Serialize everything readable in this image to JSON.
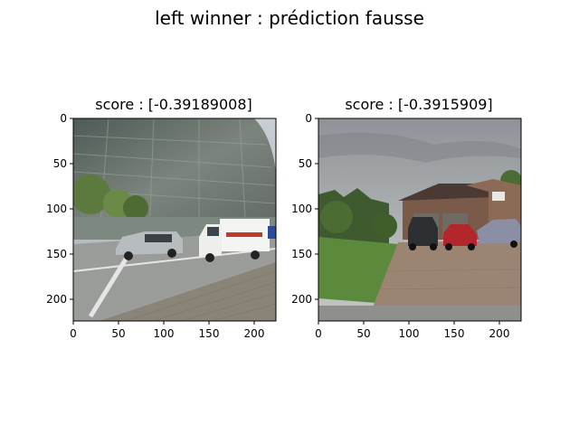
{
  "figure": {
    "suptitle": "left winner : prédiction fausse"
  },
  "chart_data": [
    {
      "type": "image",
      "title": "score : [-0.39189008]",
      "image_description": "street view: curved glass building, grey minivan and white box truck on road",
      "xticks": [
        0,
        50,
        100,
        150,
        200
      ],
      "yticks": [
        0,
        50,
        100,
        150,
        200
      ],
      "xlim": [
        0,
        224
      ],
      "ylim": [
        224,
        0
      ]
    },
    {
      "type": "image",
      "title": "score : [-0.3915909]",
      "image_description": "street view: suburban brick house with double garage, pickup truck and red car in driveway",
      "xticks": [
        0,
        50,
        100,
        150,
        200
      ],
      "yticks": [
        0,
        50,
        100,
        150,
        200
      ],
      "xlim": [
        0,
        224
      ],
      "ylim": [
        224,
        0
      ]
    }
  ]
}
